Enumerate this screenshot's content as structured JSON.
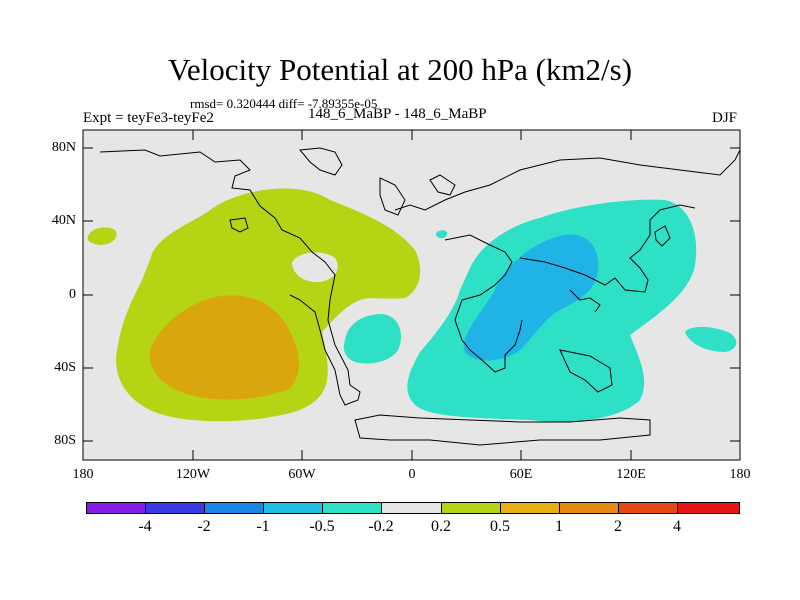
{
  "title": "Velocity Potential at 200 hPa (km2/s)",
  "stats": "rmsd= 0.320444  diff= -7.89355e-05",
  "experiment": "Expt = teyFe3-teyFe2",
  "period": "148_6_MaBP - 148_6_MaBP",
  "season": "DJF",
  "axes": {
    "y_labels": [
      "80N",
      "40N",
      "0",
      "40S",
      "80S"
    ],
    "x_labels": [
      "180",
      "120W",
      "60W",
      "0",
      "60E",
      "120E",
      "180"
    ]
  },
  "colorbar": {
    "colors": [
      "#8a1ce8",
      "#3b3be6",
      "#1c86e6",
      "#20c0e6",
      "#2ee0c6",
      "#e6e6e6",
      "#b4d414",
      "#e6b014",
      "#e68a14",
      "#e64a14",
      "#e61414"
    ],
    "labels": [
      "-4",
      "-2",
      "-1",
      "-0.5",
      "-0.2",
      "0.2",
      "0.5",
      "1",
      "2",
      "4"
    ]
  },
  "colors": {
    "background": "#e6e6e6",
    "positive_light": "#b4d414",
    "positive_strong": "#d9a60e",
    "negative_light": "#2ee0c6",
    "negative_strong": "#20b4e6"
  }
}
